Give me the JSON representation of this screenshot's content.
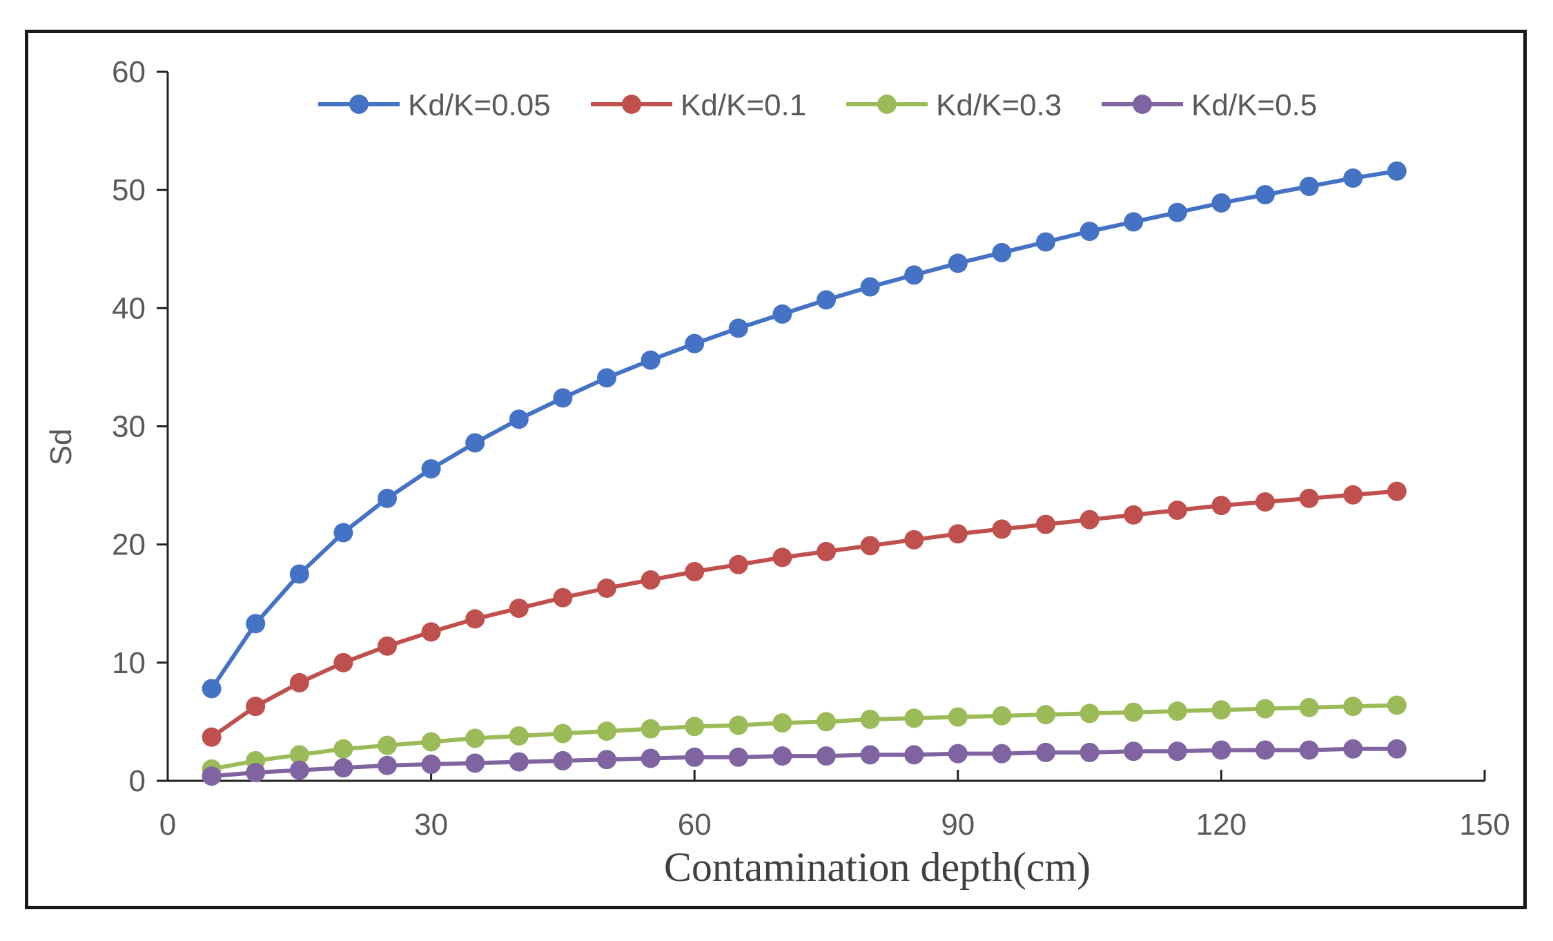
{
  "chart_data": {
    "type": "line",
    "title": "",
    "xlabel": "Contamination depth(cm)",
    "ylabel": "Sd",
    "xlim": [
      0,
      150
    ],
    "ylim": [
      0,
      60
    ],
    "xticks": [
      "0",
      "30",
      "60",
      "90",
      "120",
      "150"
    ],
    "yticks": [
      "0",
      "10",
      "20",
      "30",
      "40",
      "50",
      "60"
    ],
    "grid": false,
    "legend_position": "top",
    "x": [
      5,
      10,
      15,
      20,
      25,
      30,
      35,
      40,
      45,
      50,
      55,
      60,
      65,
      70,
      75,
      80,
      85,
      90,
      95,
      100,
      105,
      110,
      115,
      120,
      125,
      130,
      135,
      140
    ],
    "series": [
      {
        "name": "Kd/K=0.05",
        "color": "#4472c4",
        "values": [
          7.8,
          13.3,
          17.5,
          21.0,
          23.9,
          26.4,
          28.6,
          30.6,
          32.4,
          34.1,
          35.6,
          37.0,
          38.3,
          39.5,
          40.7,
          41.8,
          42.8,
          43.8,
          44.7,
          45.6,
          46.5,
          47.3,
          48.1,
          48.9,
          49.6,
          50.3,
          51.0,
          51.6
        ]
      },
      {
        "name": "Kd/K=0.1",
        "color": "#c0504d",
        "values": [
          3.7,
          6.3,
          8.3,
          10.0,
          11.4,
          12.6,
          13.7,
          14.6,
          15.5,
          16.3,
          17.0,
          17.7,
          18.3,
          18.9,
          19.4,
          19.9,
          20.4,
          20.9,
          21.3,
          21.7,
          22.1,
          22.5,
          22.9,
          23.3,
          23.6,
          23.9,
          24.2,
          24.5
        ]
      },
      {
        "name": "Kd/K=0.3",
        "color": "#9bbb59",
        "values": [
          1.0,
          1.7,
          2.2,
          2.7,
          3.0,
          3.3,
          3.6,
          3.8,
          4.0,
          4.2,
          4.4,
          4.6,
          4.7,
          4.9,
          5.0,
          5.2,
          5.3,
          5.4,
          5.5,
          5.6,
          5.7,
          5.8,
          5.9,
          6.0,
          6.1,
          6.2,
          6.3,
          6.4
        ]
      },
      {
        "name": "Kd/K=0.5",
        "color": "#8064a2",
        "values": [
          0.4,
          0.7,
          0.9,
          1.1,
          1.3,
          1.4,
          1.5,
          1.6,
          1.7,
          1.8,
          1.9,
          2.0,
          2.0,
          2.1,
          2.1,
          2.2,
          2.2,
          2.3,
          2.3,
          2.4,
          2.4,
          2.5,
          2.5,
          2.6,
          2.6,
          2.6,
          2.7,
          2.7
        ]
      }
    ]
  }
}
